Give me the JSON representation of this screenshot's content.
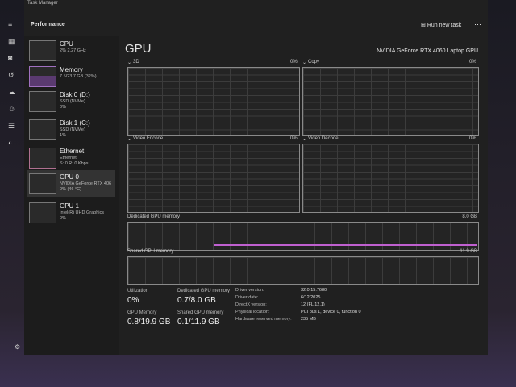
{
  "window": {
    "title": "Task Manager"
  },
  "header": {
    "section": "Performance",
    "action": "Run new task"
  },
  "sidebar": [
    {
      "name": "CPU",
      "line1": "2% 2.27 GHz"
    },
    {
      "name": "Memory",
      "line1": "7.5/23.7 GB (32%)"
    },
    {
      "name": "Disk 0 (D:)",
      "line1": "SSD (NVMe)",
      "line2": "0%"
    },
    {
      "name": "Disk 1 (C:)",
      "line1": "SSD (NVMe)",
      "line2": "1%"
    },
    {
      "name": "Ethernet",
      "line1": "Ethernet",
      "line2": "S: 0 R: 0 Kbps"
    },
    {
      "name": "GPU 0",
      "line1": "NVIDIA GeForce RTX 406",
      "line2": "0% (46 °C)"
    },
    {
      "name": "GPU 1",
      "line1": "Intel(R) UHD Graphics",
      "line2": "0%"
    }
  ],
  "main": {
    "title": "GPU",
    "device": "NVIDIA GeForce RTX 4060 Laptop GPU",
    "graphs": [
      {
        "label": "3D",
        "value": "0%"
      },
      {
        "label": "Copy",
        "value": "0%"
      },
      {
        "label": "Video Encode",
        "value": "0%"
      },
      {
        "label": "Video Decode",
        "value": "0%"
      }
    ],
    "dedicated": {
      "label": "Dedicated GPU memory",
      "value": "8.0 GB"
    },
    "shared": {
      "label": "Shared GPU memory",
      "value": "11.9 GB"
    },
    "stats": [
      {
        "label": "Utilization",
        "value": "0%"
      },
      {
        "label": "Dedicated GPU memory",
        "value": "0.7/8.0 GB"
      },
      {
        "label": "GPU Memory",
        "value": "0.8/19.9 GB"
      },
      {
        "label": "Shared GPU memory",
        "value": "0.1/11.9 GB"
      }
    ],
    "details": [
      {
        "label": "Driver version:",
        "value": "32.0.15.7680"
      },
      {
        "label": "Driver date:",
        "value": "6/12/2025"
      },
      {
        "label": "DirectX version:",
        "value": "12 (FL 12.1)"
      },
      {
        "label": "Physical location:",
        "value": "PCI bus 1, device 0, function 0"
      },
      {
        "label": "Hardware reserved memory:",
        "value": "235 MB"
      }
    ]
  }
}
